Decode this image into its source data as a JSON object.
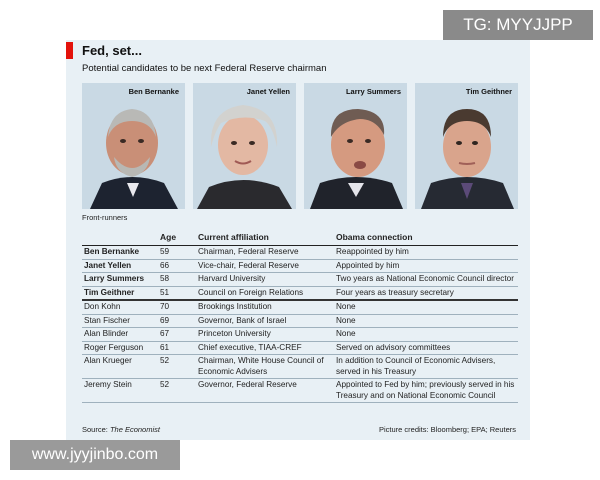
{
  "header": {
    "title": "Fed, set...",
    "subtitle": "Potential candidates to be next Federal Reserve chairman"
  },
  "photos": [
    {
      "name": "Ben Bernanke",
      "icon": "portrait-icon"
    },
    {
      "name": "Janet Yellen",
      "icon": "portrait-icon"
    },
    {
      "name": "Larry Summers",
      "icon": "portrait-icon"
    },
    {
      "name": "Tim Geithner",
      "icon": "portrait-icon"
    }
  ],
  "front_runners_label": "Front-runners",
  "table": {
    "columns": [
      "",
      "Age",
      "Current affiliation",
      "Obama connection"
    ],
    "rows": [
      [
        "Ben Bernanke",
        "59",
        "Chairman, Federal Reserve",
        "Reappointed by him"
      ],
      [
        "Janet Yellen",
        "66",
        "Vice-chair, Federal Reserve",
        "Appointed by him"
      ],
      [
        "Larry Summers",
        "58",
        "Harvard University",
        "Two years as National Economic Council director"
      ],
      [
        "Tim Geithner",
        "51",
        "Council on Foreign Relations",
        "Four years as treasury secretary"
      ],
      [
        "Don Kohn",
        "70",
        "Brookings Institution",
        "None"
      ],
      [
        "Stan Fischer",
        "69",
        "Governor, Bank of Israel",
        "None"
      ],
      [
        "Alan Blinder",
        "67",
        "Princeton University",
        "None"
      ],
      [
        "Roger Ferguson",
        "61",
        "Chief executive, TIAA-CREF",
        "Served on advisory committees"
      ],
      [
        "Alan Krueger",
        "52",
        "Chairman, White House Council of Economic Advisers",
        "In addition to Council of Economic Advisers, served in his Treasury"
      ],
      [
        "Jeremy Stein",
        "52",
        "Governor, Federal Reserve",
        "Appointed to Fed by him; previously served in his Treasury and on National Economic Council"
      ]
    ]
  },
  "footer": {
    "source_prefix": "Source: ",
    "source_name": "The Economist",
    "credits": "Picture credits: Bloomberg; EPA; Reuters"
  },
  "watermarks": {
    "top": "TG: MYYJJPP",
    "bottom": "www.jyyjinbo.com"
  },
  "colors": {
    "accent": "#e3120b",
    "card_background": "#e8f0f5",
    "photo_background": "#c9d9e4"
  }
}
